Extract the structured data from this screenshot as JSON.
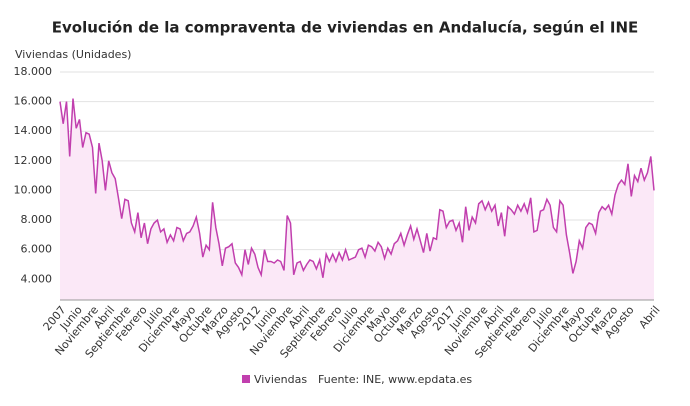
{
  "chart_data": {
    "type": "line",
    "title": "Evolución de la compraventa de viviendas en Andalucía, según el INE",
    "y_label": "Viviendas (Unidades)",
    "source": "Fuente: INE, www.epdata.es",
    "categories": [
      "2007",
      null,
      null,
      null,
      null,
      "Junio",
      null,
      null,
      null,
      null,
      "Noviembre",
      null,
      null,
      null,
      null,
      "Abril",
      null,
      null,
      null,
      null,
      "Septiembre",
      null,
      null,
      null,
      null,
      "Febrero",
      null,
      null,
      null,
      null,
      "Julio",
      null,
      null,
      null,
      null,
      "Diciembre",
      null,
      null,
      null,
      null,
      "Mayo",
      null,
      null,
      null,
      null,
      "Octubre",
      null,
      null,
      null,
      null,
      "Marzo",
      null,
      null,
      null,
      null,
      "Agosto",
      null,
      null,
      null,
      null,
      "2012",
      null,
      null,
      null,
      null,
      "Junio",
      null,
      null,
      null,
      null,
      "Noviembre",
      null,
      null,
      null,
      null,
      "Abril",
      null,
      null,
      null,
      null,
      "Septiembre",
      null,
      null,
      null,
      null,
      "Febrero",
      null,
      null,
      null,
      null,
      "Julio",
      null,
      null,
      null,
      null,
      "Diciembre",
      null,
      null,
      null,
      null,
      "Mayo",
      null,
      null,
      null,
      null,
      "Octubre",
      null,
      null,
      null,
      null,
      "Marzo",
      null,
      null,
      null,
      null,
      "Agosto",
      null,
      null,
      null,
      null,
      "2017",
      null,
      null,
      null,
      null,
      "Junio",
      null,
      null,
      null,
      null,
      "Noviembre",
      null,
      null,
      null,
      null,
      "Abril",
      null,
      null,
      null,
      null,
      "Septiembre",
      null,
      null,
      null,
      null,
      "Febrero",
      null,
      null,
      null,
      null,
      "Julio",
      null,
      null,
      null,
      null,
      "Diciembre",
      null,
      null,
      null,
      null,
      "Mayo",
      null,
      null,
      null,
      null,
      "Octubre",
      null,
      null,
      null,
      null,
      "Marzo",
      null,
      null,
      null,
      null,
      "Agosto",
      null,
      null,
      null,
      null,
      null,
      null,
      null,
      "Abril"
    ],
    "series": [
      {
        "name": "Viviendas",
        "color": "#c13fae",
        "fill": "#fbe8f7",
        "values": [
          16000,
          14500,
          16000,
          12300,
          16200,
          14200,
          14800,
          12900,
          13900,
          13800,
          12900,
          9800,
          13200,
          12000,
          10000,
          12000,
          11200,
          10800,
          9500,
          8100,
          9400,
          9300,
          7800,
          7200,
          8500,
          6800,
          7800,
          6400,
          7400,
          7800,
          8000,
          7200,
          7400,
          6500,
          7000,
          6600,
          7500,
          7400,
          6600,
          7100,
          7200,
          7600,
          8200,
          7100,
          5500,
          6300,
          6000,
          9200,
          7500,
          6400,
          4900,
          6100,
          6200,
          6400,
          5100,
          4800,
          4300,
          6000,
          5000,
          6100,
          5700,
          4800,
          4300,
          6000,
          5200,
          5200,
          5100,
          5300,
          5200,
          4600,
          8300,
          7800,
          4300,
          5100,
          5200,
          4600,
          5000,
          5300,
          5200,
          4700,
          5300,
          4100,
          5700,
          5200,
          5700,
          5200,
          5800,
          5300,
          6000,
          5300,
          5400,
          5500,
          6000,
          6100,
          5500,
          6300,
          6200,
          5900,
          6500,
          6200,
          5400,
          6100,
          5700,
          6400,
          6600,
          7100,
          6300,
          7000,
          7600,
          6700,
          7400,
          6600,
          5800,
          7100,
          5900,
          6800,
          6700,
          8700,
          8600,
          7500,
          7900,
          8000,
          7300,
          7800,
          6500,
          8900,
          7300,
          8200,
          7800,
          9100,
          9300,
          8700,
          9200,
          8600,
          9000,
          7600,
          8500,
          6900,
          8900,
          8700,
          8400,
          9000,
          8600,
          9100,
          8500,
          9500,
          7200,
          7300,
          8600,
          8700,
          9400,
          9000,
          7500,
          7200,
          9300,
          9000,
          7000,
          5800,
          4400,
          5200,
          6600,
          6100,
          7500,
          7800,
          7700,
          7100,
          8500,
          8900,
          8700,
          9000,
          8400,
          9700,
          10400,
          10700,
          10400,
          11800,
          9600,
          11000,
          10600,
          11500,
          10700,
          11200,
          12300,
          10000
        ]
      }
    ],
    "ylim": [
      2600,
      18000
    ],
    "yticks": [
      {
        "value": 4000,
        "label": "4.000"
      },
      {
        "value": 6000,
        "label": "6.000"
      },
      {
        "value": 8000,
        "label": "8.000"
      },
      {
        "value": 10000,
        "label": "10.000"
      },
      {
        "value": 12000,
        "label": "12.000"
      },
      {
        "value": 14000,
        "label": "14.000"
      },
      {
        "value": 16000,
        "label": "16.000"
      },
      {
        "value": 18000,
        "label": "18.000"
      }
    ],
    "grid": true
  }
}
